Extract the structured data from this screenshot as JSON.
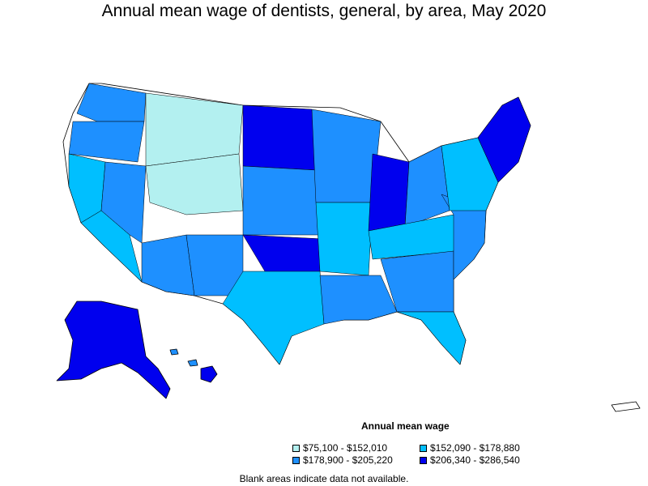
{
  "title": "Annual mean wage of dentists, general, by area, May 2020",
  "legend": {
    "title": "Annual mean wage",
    "items": [
      {
        "label": "$75,100 - $152,010",
        "color": "#b3f0f0"
      },
      {
        "label": "$152,090 - $178,880",
        "color": "#00bfff"
      },
      {
        "label": "$178,900 - $205,220",
        "color": "#1e90ff"
      },
      {
        "label": "$206,340 - $286,540",
        "color": "#0000ee"
      }
    ]
  },
  "note": "Blank areas indicate data not available.",
  "colors": {
    "border": "#000000",
    "no_data": "#ffffff"
  }
}
